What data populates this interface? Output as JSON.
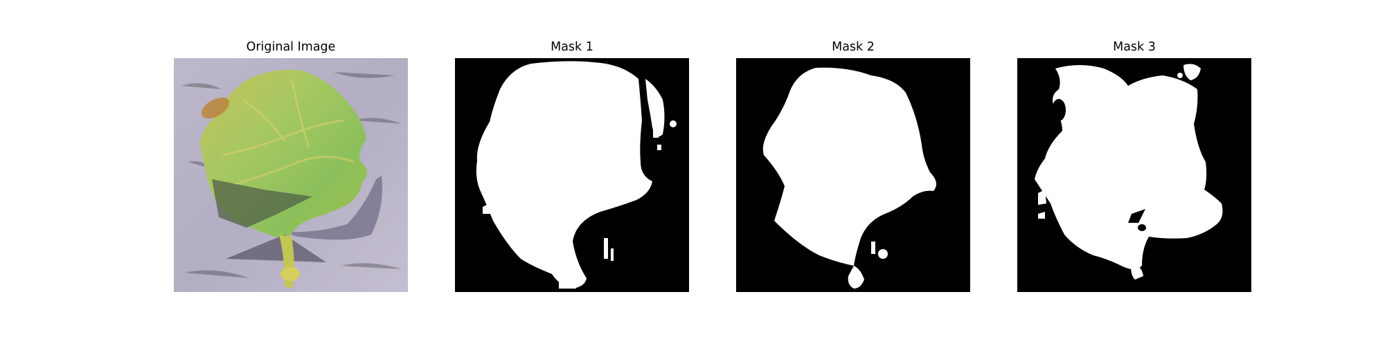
{
  "figure": {
    "panels": [
      {
        "title": "Original Image",
        "kind": "photo",
        "subject": "leaf"
      },
      {
        "title": "Mask 1",
        "kind": "binary-mask"
      },
      {
        "title": "Mask 2",
        "kind": "binary-mask"
      },
      {
        "title": "Mask 3",
        "kind": "binary-mask"
      }
    ],
    "colors": {
      "mask_background": "#000000",
      "mask_foreground": "#ffffff",
      "photo_background": "#b6b0c4",
      "leaf_green": "#8ec25a",
      "leaf_yellow": "#d2c85a",
      "shadow": "#5a5570"
    }
  }
}
